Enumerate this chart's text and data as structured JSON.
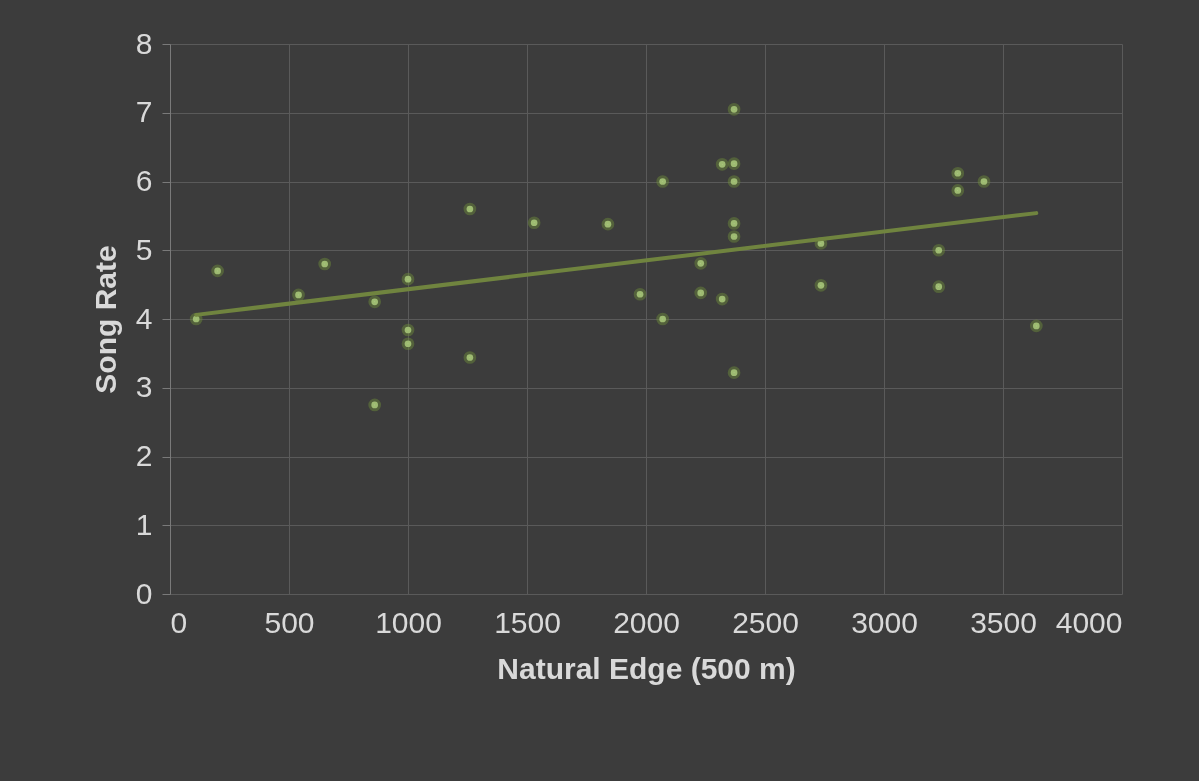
{
  "chart_data": {
    "type": "scatter",
    "xlabel": "Natural Edge (500 m)",
    "ylabel": "Song Rate",
    "xlim": [
      0,
      4000
    ],
    "xticks": [
      0,
      500,
      1000,
      1500,
      2000,
      2500,
      3000,
      3500,
      4000
    ],
    "ylim": [
      0,
      8
    ],
    "yticks": [
      0,
      1,
      2,
      3,
      4,
      5,
      6,
      7,
      8
    ],
    "grid": true,
    "series": [
      {
        "marker": "circle",
        "color": "#c5e0a0",
        "x": [
          110,
          200,
          540,
          650,
          860,
          860,
          1000,
          1000,
          1000,
          1260,
          1260,
          1530,
          1840,
          1975,
          2070,
          2070,
          2230,
          2230,
          2320,
          2320,
          2370,
          2370,
          2370,
          2370,
          2370,
          2370,
          2735,
          2735,
          3230,
          3230,
          3310,
          3310,
          3420,
          3640
        ],
        "values": [
          4.0,
          4.7,
          4.35,
          4.8,
          4.25,
          2.75,
          4.58,
          3.84,
          3.64,
          5.6,
          3.44,
          5.4,
          5.38,
          4.36,
          6.0,
          4.0,
          4.81,
          4.38,
          4.29,
          6.25,
          7.05,
          6.26,
          6.0,
          5.39,
          5.2,
          3.22,
          5.1,
          4.49,
          5.0,
          4.47,
          6.12,
          5.87,
          6.0,
          3.9
        ]
      },
      {
        "type": "line",
        "color": "#70843f",
        "line_style": "solid",
        "x": [
          110,
          3640
        ],
        "values": [
          4.06,
          5.54
        ]
      }
    ]
  }
}
